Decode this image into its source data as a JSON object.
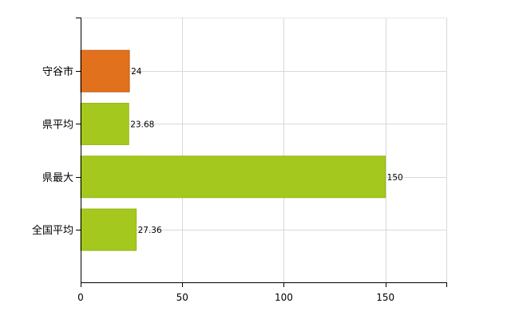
{
  "chart_data": {
    "type": "bar",
    "orientation": "horizontal",
    "categories": [
      "守谷市",
      "県平均",
      "県最大",
      "全国平均"
    ],
    "values": [
      24,
      23.68,
      150,
      27.36
    ],
    "data_labels": [
      "24",
      "23.68",
      "150",
      "27.36"
    ],
    "bar_colors": [
      "#E2711D",
      "#A5C81E",
      "#A5C81E",
      "#A5C81E"
    ],
    "bar_border_colors": [
      "#C45C12",
      "#94B612",
      "#94B612",
      "#94B612"
    ],
    "x_ticks": [
      0,
      50,
      100,
      150
    ],
    "xlim": [
      0,
      180
    ],
    "grid": true,
    "title": "",
    "xlabel": "",
    "ylabel": ""
  }
}
